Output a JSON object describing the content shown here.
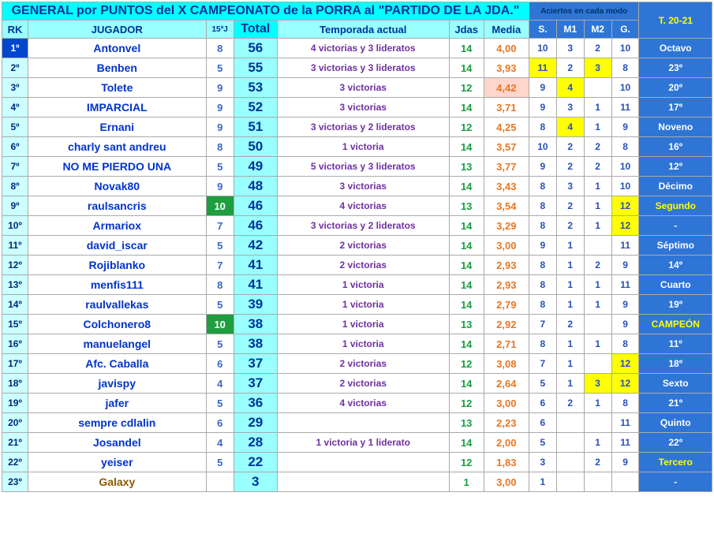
{
  "title": "GENERAL por PUNTOS del X CAMPEONATO de la PORRA al \"PARTIDO DE LA JDA.\"",
  "aciertos_label": "Aciertos en cada modo",
  "header": {
    "rk": "RK",
    "jugador": "JUGADOR",
    "j15": "15ªJ",
    "total": "Total",
    "temp": "Temporada actual",
    "jdas": "Jdas",
    "media": "Media",
    "s": "S.",
    "m1": "M1",
    "m2": "M2",
    "g": "G.",
    "t2021": "T. 20-21"
  },
  "rows": [
    {
      "rk": "1º",
      "rkFirst": true,
      "player": "Antonvel",
      "j15": "8",
      "j15g": false,
      "total": "56",
      "temp": "4 victorias y 3 lideratos",
      "jdas": "14",
      "media": "4,00",
      "mediaHl": false,
      "s": "10",
      "sY": false,
      "m1": "3",
      "m1Y": false,
      "m2": "2",
      "m2Y": false,
      "g": "10",
      "gY": false,
      "t": "Octavo",
      "tY": false
    },
    {
      "rk": "2º",
      "player": "Benben",
      "j15": "5",
      "total": "55",
      "temp": "3 victorias y 3 lideratos",
      "jdas": "14",
      "media": "3,93",
      "s": "11",
      "sY": true,
      "m1": "2",
      "m2": "3",
      "m2Y": true,
      "g": "8",
      "t": "23º"
    },
    {
      "rk": "3º",
      "player": "Tolete",
      "j15": "9",
      "total": "53",
      "temp": "3 victorias",
      "jdas": "12",
      "media": "4,42",
      "mediaHl": true,
      "s": "9",
      "m1": "4",
      "m1Y": true,
      "m2": "",
      "g": "10",
      "t": "20º"
    },
    {
      "rk": "4º",
      "player": "IMPARCIAL",
      "j15": "9",
      "total": "52",
      "temp": "3 victorias",
      "jdas": "14",
      "media": "3,71",
      "s": "9",
      "m1": "3",
      "m2": "1",
      "g": "11",
      "t": "17º"
    },
    {
      "rk": "5º",
      "player": "Ernani",
      "j15": "9",
      "total": "51",
      "temp": "3 victorias y 2 lideratos",
      "jdas": "12",
      "media": "4,25",
      "s": "8",
      "m1": "4",
      "m1Y": true,
      "m2": "1",
      "g": "9",
      "t": "Noveno"
    },
    {
      "rk": "6º",
      "player": "charly sant andreu",
      "j15": "8",
      "total": "50",
      "temp": "1 victoria",
      "jdas": "14",
      "media": "3,57",
      "s": "10",
      "m1": "2",
      "m2": "2",
      "g": "8",
      "t": "16º"
    },
    {
      "rk": "7º",
      "player": "NO ME PIERDO UNA",
      "j15": "5",
      "total": "49",
      "temp": "5 victorias y 3 lideratos",
      "jdas": "13",
      "media": "3,77",
      "s": "9",
      "m1": "2",
      "m2": "2",
      "g": "10",
      "t": "12º"
    },
    {
      "rk": "8º",
      "player": "Novak80",
      "j15": "9",
      "total": "48",
      "temp": "3 victorias",
      "jdas": "14",
      "media": "3,43",
      "s": "8",
      "m1": "3",
      "m2": "1",
      "g": "10",
      "t": "Décimo"
    },
    {
      "rk": "9º",
      "player": "raulsancris",
      "j15": "10",
      "j15g": true,
      "total": "46",
      "temp": "4 victorias",
      "jdas": "13",
      "media": "3,54",
      "s": "8",
      "m1": "2",
      "m2": "1",
      "g": "12",
      "gY": true,
      "t": "Segundo",
      "tY": true
    },
    {
      "rk": "10º",
      "player": "Armariox",
      "j15": "7",
      "total": "46",
      "temp": "3 victorias y 2 lideratos",
      "jdas": "14",
      "media": "3,29",
      "s": "8",
      "m1": "2",
      "m2": "1",
      "g": "12",
      "gY": true,
      "t": "-"
    },
    {
      "rk": "11º",
      "player": "david_iscar",
      "j15": "5",
      "total": "42",
      "temp": "2 victorias",
      "jdas": "14",
      "media": "3,00",
      "s": "9",
      "m1": "1",
      "m2": "",
      "g": "11",
      "t": "Séptimo"
    },
    {
      "rk": "12º",
      "player": "Rojiblanko",
      "j15": "7",
      "total": "41",
      "temp": "2 victorias",
      "jdas": "14",
      "media": "2,93",
      "s": "8",
      "m1": "1",
      "m2": "2",
      "g": "9",
      "t": "14º"
    },
    {
      "rk": "13º",
      "player": "menfis111",
      "j15": "8",
      "total": "41",
      "temp": "1 victoria",
      "jdas": "14",
      "media": "2,93",
      "s": "8",
      "m1": "1",
      "m2": "1",
      "g": "11",
      "t": "Cuarto"
    },
    {
      "rk": "14º",
      "player": "raulvallekas",
      "j15": "5",
      "total": "39",
      "temp": "1 victoria",
      "jdas": "14",
      "media": "2,79",
      "s": "8",
      "m1": "1",
      "m2": "1",
      "g": "9",
      "t": "19º"
    },
    {
      "rk": "15º",
      "player": "Colchonero8",
      "j15": "10",
      "j15g": true,
      "total": "38",
      "temp": "1 victoria",
      "jdas": "13",
      "media": "2,92",
      "s": "7",
      "m1": "2",
      "m2": "",
      "g": "9",
      "t": "CAMPEÓN",
      "tY": true
    },
    {
      "rk": "16º",
      "player": "manuelangel",
      "j15": "5",
      "total": "38",
      "temp": "1 victoria",
      "jdas": "14",
      "media": "2,71",
      "s": "8",
      "m1": "1",
      "m2": "1",
      "g": "8",
      "t": "11º"
    },
    {
      "rk": "17º",
      "player": "Afc. Caballa",
      "j15": "6",
      "total": "37",
      "temp": "2 victorias",
      "jdas": "12",
      "media": "3,08",
      "s": "7",
      "m1": "1",
      "m2": "",
      "g": "12",
      "gY": true,
      "t": "18º"
    },
    {
      "rk": "18º",
      "player": "javispy",
      "j15": "4",
      "total": "37",
      "temp": "2 victorias",
      "jdas": "14",
      "media": "2,64",
      "s": "5",
      "m1": "1",
      "m2": "3",
      "m2Y": true,
      "g": "12",
      "gY": true,
      "t": "Sexto"
    },
    {
      "rk": "19º",
      "player": "jafer",
      "j15": "5",
      "total": "36",
      "temp": "4 victorias",
      "jdas": "12",
      "media": "3,00",
      "s": "6",
      "m1": "2",
      "m2": "1",
      "g": "8",
      "t": "21º"
    },
    {
      "rk": "20º",
      "player": "sempre cdlalin",
      "j15": "6",
      "total": "29",
      "temp": "",
      "jdas": "13",
      "media": "2,23",
      "s": "6",
      "m1": "",
      "m2": "",
      "g": "11",
      "t": "Quinto"
    },
    {
      "rk": "21º",
      "player": "Josandel",
      "j15": "4",
      "total": "28",
      "temp": "1 victoria y 1 liderato",
      "jdas": "14",
      "media": "2,00",
      "s": "5",
      "m1": "",
      "m2": "1",
      "g": "11",
      "t": "22º"
    },
    {
      "rk": "22º",
      "player": "yeiser",
      "j15": "5",
      "total": "22",
      "temp": "",
      "jdas": "12",
      "media": "1,83",
      "s": "3",
      "m1": "",
      "m2": "2",
      "g": "9",
      "t": "Tercero",
      "tY": true
    },
    {
      "rk": "23º",
      "player": "Galaxy",
      "playerLast": true,
      "j15": "",
      "total": "3",
      "temp": "",
      "jdas": "1",
      "media": "3,00",
      "s": "1",
      "m1": "",
      "m2": "",
      "g": "",
      "t": "-"
    }
  ]
}
